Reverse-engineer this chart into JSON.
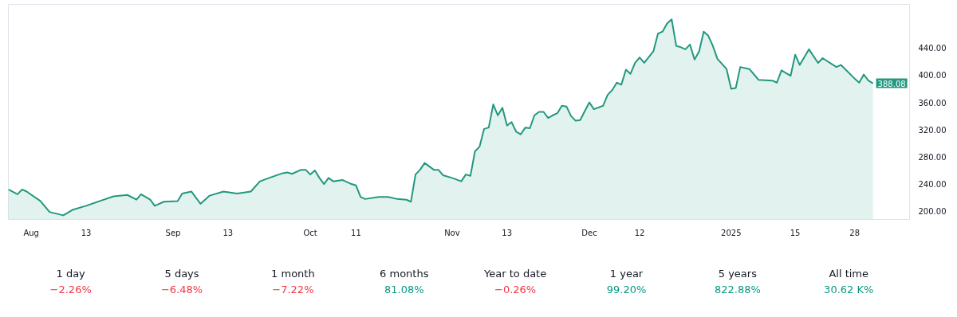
{
  "chart_data": {
    "type": "area",
    "x": [
      "2024-07-27",
      "2024-07-29",
      "2024-07-30",
      "2024-07-31",
      "2024-08-03",
      "2024-08-05",
      "2024-08-08",
      "2024-08-10",
      "2024-08-13",
      "2024-08-16",
      "2024-08-19",
      "2024-08-22",
      "2024-08-24",
      "2024-08-25",
      "2024-08-27",
      "2024-08-28",
      "2024-08-30",
      "2024-09-02",
      "2024-09-03",
      "2024-09-05",
      "2024-09-07",
      "2024-09-09",
      "2024-09-12",
      "2024-09-15",
      "2024-09-18",
      "2024-09-20",
      "2024-09-22",
      "2024-09-25",
      "2024-09-26",
      "2024-09-27",
      "2024-09-29",
      "2024-09-30",
      "2024-10-01",
      "2024-10-02",
      "2024-10-03",
      "2024-10-04",
      "2024-10-05",
      "2024-10-06",
      "2024-10-08",
      "2024-10-10",
      "2024-10-11",
      "2024-10-12",
      "2024-10-13",
      "2024-10-16",
      "2024-10-18",
      "2024-10-20",
      "2024-10-22",
      "2024-10-23",
      "2024-10-24",
      "2024-10-25",
      "2024-10-26",
      "2024-10-28",
      "2024-10-29",
      "2024-10-30",
      "2024-11-01",
      "2024-11-03",
      "2024-11-04",
      "2024-11-05",
      "2024-11-06",
      "2024-11-07",
      "2024-11-08",
      "2024-11-09",
      "2024-11-10",
      "2024-11-11",
      "2024-11-12",
      "2024-11-13",
      "2024-11-14",
      "2024-11-15",
      "2024-11-16",
      "2024-11-17",
      "2024-11-18",
      "2024-11-19",
      "2024-11-20",
      "2024-11-21",
      "2024-11-22",
      "2024-11-23",
      "2024-11-24",
      "2024-11-25",
      "2024-11-26",
      "2024-11-27",
      "2024-11-28",
      "2024-11-29",
      "2024-12-01",
      "2024-12-02",
      "2024-12-04",
      "2024-12-05",
      "2024-12-06",
      "2024-12-07",
      "2024-12-08",
      "2024-12-09",
      "2024-12-10",
      "2024-12-11",
      "2024-12-12",
      "2024-12-13",
      "2024-12-15",
      "2024-12-16",
      "2024-12-17",
      "2024-12-18",
      "2024-12-19",
      "2024-12-20",
      "2024-12-21",
      "2024-12-22",
      "2024-12-23",
      "2024-12-24",
      "2024-12-25",
      "2024-12-26",
      "2024-12-27",
      "2024-12-28",
      "2024-12-29",
      "2024-12-31",
      "2025-01-01",
      "2025-01-02",
      "2025-01-03",
      "2025-01-05",
      "2025-01-06",
      "2025-01-07",
      "2025-01-10",
      "2025-01-11",
      "2025-01-12",
      "2025-01-14",
      "2025-01-15",
      "2025-01-16",
      "2025-01-18",
      "2025-01-20",
      "2025-01-21",
      "2025-01-24",
      "2025-01-25",
      "2025-01-28",
      "2025-01-29",
      "2025-01-30",
      "2025-01-31",
      "2025-02-01"
    ],
    "series": [
      {
        "color": "#22987f",
        "values": [
          232,
          225,
          232,
          229,
          215,
          199,
          194,
          202,
          208,
          215,
          222,
          224,
          217,
          225,
          217,
          208,
          214,
          215,
          226,
          229,
          211,
          223,
          229,
          226,
          229,
          244,
          249,
          256,
          257,
          255,
          261,
          261,
          254,
          260,
          249,
          240,
          249,
          244,
          246,
          240,
          238,
          221,
          218,
          221,
          221,
          218,
          217,
          214,
          254,
          261,
          271,
          261,
          261,
          253,
          249,
          244,
          254,
          252,
          288,
          295,
          321,
          323,
          357,
          341,
          352,
          326,
          331,
          317,
          313,
          323,
          322,
          341,
          346,
          346,
          337,
          341,
          344,
          355,
          354,
          340,
          333,
          334,
          360,
          350,
          355,
          371,
          378,
          389,
          386,
          408,
          402,
          418,
          426,
          418,
          435,
          461,
          464,
          476,
          482,
          443,
          441,
          438,
          445,
          423,
          435,
          464,
          458,
          443,
          424,
          409,
          380,
          381,
          412,
          409,
          401,
          393,
          392,
          389,
          407,
          399,
          430,
          415,
          438,
          418,
          425,
          412,
          415,
          395,
          389,
          401,
          392,
          388.08
        ]
      }
    ],
    "xlim": [
      "2024-07-27",
      "2025-02-09"
    ],
    "xticks": [
      {
        "value": "2024-08-01",
        "label": "Aug"
      },
      {
        "value": "2024-08-13",
        "label": "13"
      },
      {
        "value": "2024-09-01",
        "label": "Sep"
      },
      {
        "value": "2024-09-13",
        "label": "13"
      },
      {
        "value": "2024-10-01",
        "label": "Oct"
      },
      {
        "value": "2024-10-11",
        "label": "11"
      },
      {
        "value": "2024-11-01",
        "label": "Nov"
      },
      {
        "value": "2024-11-13",
        "label": "13"
      },
      {
        "value": "2024-12-01",
        "label": "Dec"
      },
      {
        "value": "2024-12-12",
        "label": "12"
      },
      {
        "value": "2025-01-01",
        "label": "2025"
      },
      {
        "value": "2025-01-15",
        "label": "15"
      },
      {
        "value": "2025-01-28",
        "label": "28"
      }
    ],
    "ylim": [
      188,
      504
    ],
    "yticks": [
      {
        "value": 200,
        "label": "200.00"
      },
      {
        "value": 240,
        "label": "240.00"
      },
      {
        "value": 280,
        "label": "280.00"
      },
      {
        "value": 320,
        "label": "320.00"
      },
      {
        "value": 360,
        "label": "360.00"
      },
      {
        "value": 400,
        "label": "400.00"
      },
      {
        "value": 440,
        "label": "440.00"
      }
    ],
    "annotations": [
      {
        "text": "388.08",
        "x": "2025-02-01",
        "y": 388.08
      },
      "1 day",
      "−2.26%",
      "5 days",
      "−6.48%",
      "1 month",
      "−7.22%",
      "6 months",
      "81.08%",
      "Year to date",
      "−0.26%",
      "1 year",
      "99.20%",
      "5 years",
      "822.88%",
      "All time",
      "30.62 K%"
    ],
    "grid": false
  }
}
